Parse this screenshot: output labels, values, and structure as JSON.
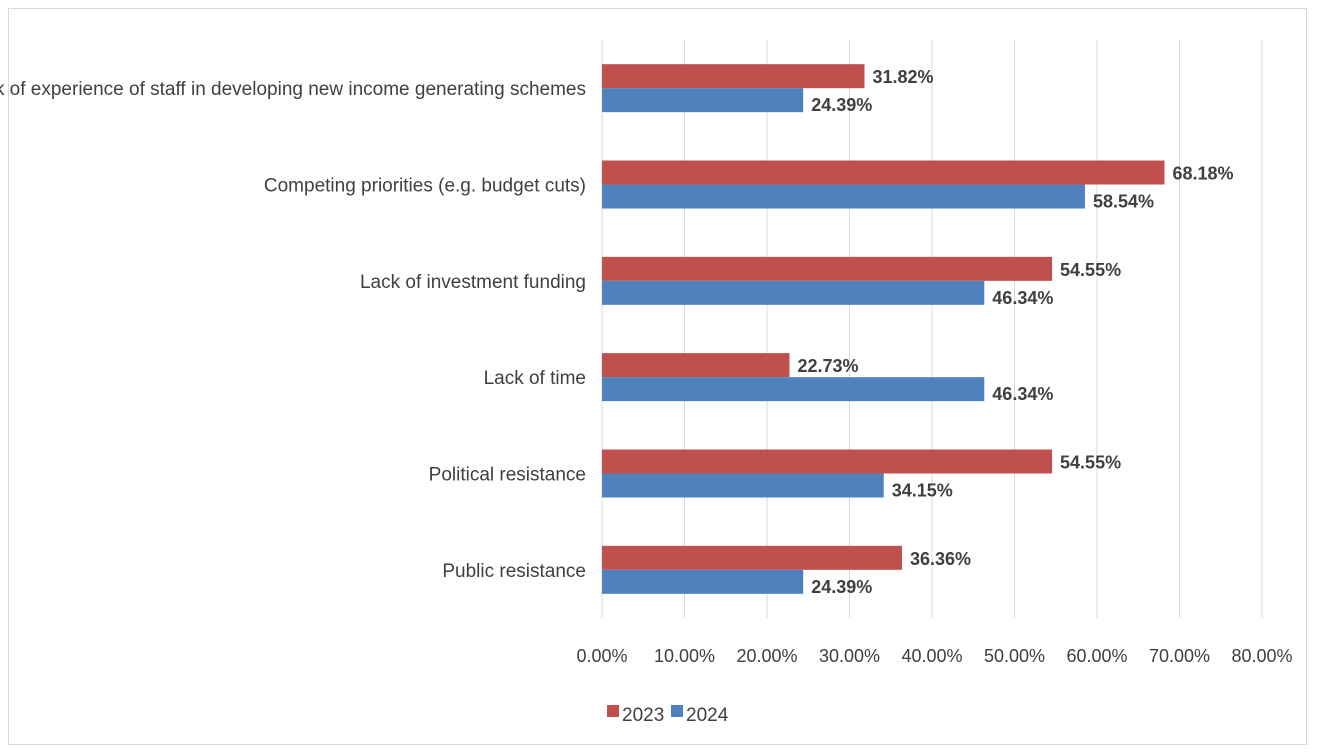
{
  "chart_data": {
    "type": "bar",
    "orientation": "horizontal",
    "categories": [
      "Lack of experience of staff in developing new income generating schemes",
      "Competing priorities (e.g. budget cuts)",
      "Lack of investment funding",
      "Lack of time",
      "Political resistance",
      "Public resistance"
    ],
    "series": [
      {
        "name": "2023",
        "color": "#c0504d",
        "values": [
          31.82,
          68.18,
          54.55,
          22.73,
          54.55,
          36.36
        ],
        "labels": [
          "31.82%",
          "68.18%",
          "54.55%",
          "22.73%",
          "54.55%",
          "36.36%"
        ]
      },
      {
        "name": "2024",
        "color": "#4f81bd",
        "values": [
          24.39,
          58.54,
          46.34,
          46.34,
          34.15,
          24.39
        ],
        "labels": [
          "24.39%",
          "58.54%",
          "46.34%",
          "46.34%",
          "34.15%",
          "24.39%"
        ]
      }
    ],
    "xlim": [
      0,
      80
    ],
    "xticks": [
      0,
      10,
      20,
      30,
      40,
      50,
      60,
      70,
      80
    ],
    "xtick_labels": [
      "0.00%",
      "10.00%",
      "20.00%",
      "30.00%",
      "40.00%",
      "50.00%",
      "60.00%",
      "70.00%",
      "80.00%"
    ],
    "grid": "vertical",
    "legend": "bottom"
  }
}
